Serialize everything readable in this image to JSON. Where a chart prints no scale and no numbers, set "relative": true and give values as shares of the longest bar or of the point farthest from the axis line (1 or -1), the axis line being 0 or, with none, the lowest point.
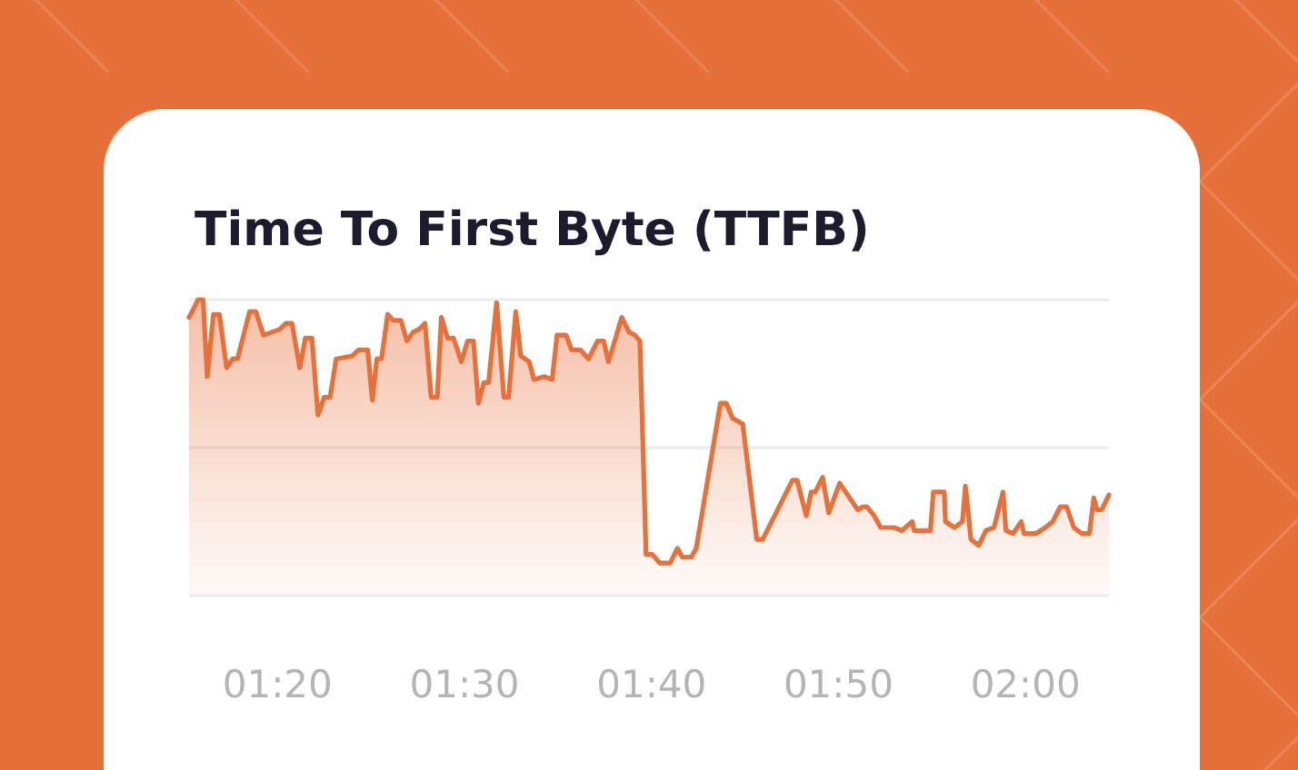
{
  "chart_data": {
    "type": "area",
    "title": "Time To First Byte (TTFB)",
    "relative": true,
    "marker": "none",
    "line_style": "solid",
    "ref_lines": [
      {
        "axis": "y",
        "value": 0.5,
        "color": "#ececec"
      },
      {
        "axis": "y",
        "value": 1,
        "color": "#ececec"
      }
    ],
    "xlim": [
      1.2545,
      2.0744
    ],
    "xticks": [
      {
        "value": 1.3333,
        "label": "01:20"
      },
      {
        "value": 1.5,
        "label": "01:30"
      },
      {
        "value": 1.6667,
        "label": "01:40"
      },
      {
        "value": 1.8333,
        "label": "01:50"
      },
      {
        "value": 2,
        "label": "02:00"
      }
    ],
    "series": [
      {
        "color": "#e8703a",
        "x": [
          1.2545,
          1.2626,
          1.267,
          1.2707,
          1.2762,
          1.2815,
          1.288,
          1.2933,
          1.2977,
          1.3085,
          1.3139,
          1.3208,
          1.3354,
          1.3409,
          1.3462,
          1.3532,
          1.3581,
          1.364,
          1.3694,
          1.3749,
          1.3802,
          1.3856,
          1.4001,
          1.4056,
          1.4137,
          1.4179,
          1.4218,
          1.426,
          1.4315,
          1.4364,
          1.4433,
          1.4487,
          1.4542,
          1.4595,
          1.4648,
          1.4703,
          1.4757,
          1.4794,
          1.4849,
          1.4902,
          1.4972,
          1.5027,
          1.508,
          1.5124,
          1.5173,
          1.5215,
          1.5286,
          1.5351,
          1.5393,
          1.5457,
          1.5501,
          1.5577,
          1.5619,
          1.5711,
          1.5781,
          1.5825,
          1.5906,
          1.5954,
          1.6035,
          1.6105,
          1.6186,
          1.6241,
          1.6283,
          1.6402,
          1.6467,
          1.652,
          1.6564,
          1.6618,
          1.6671,
          1.6742,
          1.6833,
          1.6898,
          1.6941,
          1.7022,
          1.7066,
          1.7281,
          1.7334,
          1.7389,
          1.748,
          1.7605,
          1.7658,
          1.7923,
          1.7965,
          1.8046,
          1.809,
          1.8127,
          1.8192,
          1.8247,
          1.8344,
          1.8506,
          1.8548,
          1.8587,
          1.8651,
          1.871,
          1.8829,
          1.8899,
          1.8991,
          1.9007,
          1.9153,
          1.9179,
          1.9276,
          1.9287,
          1.9368,
          1.9438,
          1.9465,
          1.9514,
          1.9583,
          1.9648,
          1.9719,
          1.98,
          1.9826,
          1.9891,
          1.9962,
          1.9988,
          2.0096,
          2.0177,
          2.0242,
          2.0311,
          2.0367,
          2.0431,
          2.0501,
          2.057,
          2.0609,
          2.0636,
          2.0679,
          2.0744
        ],
        "values": [
          0.94,
          1.0,
          1.0,
          0.74,
          0.95,
          0.95,
          0.77,
          0.8,
          0.8,
          0.96,
          0.96,
          0.88,
          0.9,
          0.92,
          0.92,
          0.77,
          0.87,
          0.87,
          0.61,
          0.67,
          0.67,
          0.8,
          0.81,
          0.83,
          0.83,
          0.66,
          0.8,
          0.8,
          0.95,
          0.93,
          0.93,
          0.86,
          0.89,
          0.9,
          0.92,
          0.67,
          0.67,
          0.94,
          0.87,
          0.87,
          0.79,
          0.86,
          0.86,
          0.65,
          0.72,
          0.72,
          0.99,
          0.67,
          0.67,
          0.96,
          0.81,
          0.79,
          0.73,
          0.74,
          0.73,
          0.88,
          0.88,
          0.83,
          0.83,
          0.8,
          0.86,
          0.86,
          0.79,
          0.94,
          0.89,
          0.88,
          0.86,
          0.14,
          0.14,
          0.11,
          0.11,
          0.16,
          0.13,
          0.13,
          0.16,
          0.65,
          0.65,
          0.6,
          0.58,
          0.19,
          0.19,
          0.39,
          0.39,
          0.27,
          0.35,
          0.35,
          0.4,
          0.28,
          0.38,
          0.29,
          0.3,
          0.3,
          0.27,
          0.23,
          0.23,
          0.22,
          0.25,
          0.22,
          0.22,
          0.35,
          0.35,
          0.25,
          0.23,
          0.25,
          0.37,
          0.19,
          0.17,
          0.22,
          0.23,
          0.35,
          0.22,
          0.21,
          0.25,
          0.21,
          0.21,
          0.23,
          0.25,
          0.3,
          0.3,
          0.23,
          0.21,
          0.21,
          0.33,
          0.29,
          0.29,
          0.34
        ]
      }
    ]
  }
}
